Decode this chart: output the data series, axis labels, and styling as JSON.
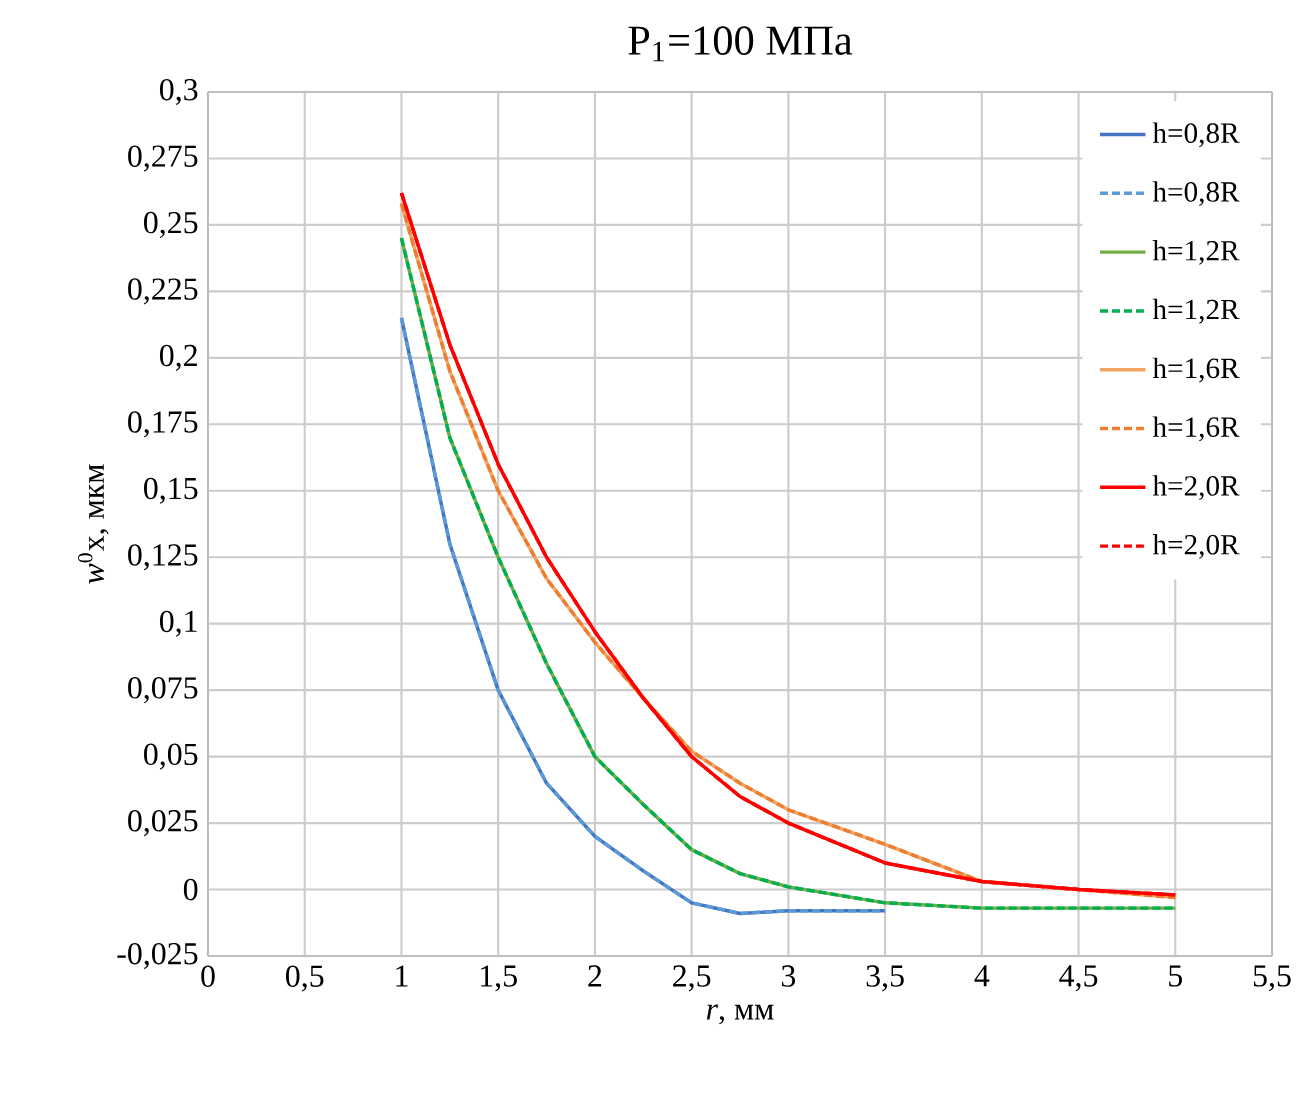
{
  "chart_data": {
    "type": "line",
    "title": "P$_{1}$=100 МПа",
    "xlabel": "*r*, мм",
    "ylabel": "*w*$^{0}$x, мкм",
    "xlim": [
      0,
      5.5
    ],
    "ylim": [
      -0.025,
      0.3
    ],
    "xticks": [
      0,
      {
        "value": 0.5,
        "label": "0,5"
      },
      1,
      {
        "value": 1.5,
        "label": "1,5"
      },
      2,
      {
        "value": 2.5,
        "label": "2,5"
      },
      3,
      {
        "value": 3.5,
        "label": "3,5"
      },
      4,
      {
        "value": 4.5,
        "label": "4,5"
      },
      5,
      {
        "value": 5.5,
        "label": "5,5"
      }
    ],
    "yticks": [
      {
        "value": -0.025,
        "label": "-0,025"
      },
      0,
      {
        "value": 0.025,
        "label": "0,025"
      },
      {
        "value": 0.05,
        "label": "0,05"
      },
      {
        "value": 0.075,
        "label": "0,075"
      },
      {
        "value": 0.1,
        "label": "0,1"
      },
      {
        "value": 0.125,
        "label": "0,125"
      },
      {
        "value": 0.15,
        "label": "0,15"
      },
      {
        "value": 0.175,
        "label": "0,175"
      },
      {
        "value": 0.2,
        "label": "0,2"
      },
      {
        "value": 0.225,
        "label": "0,225"
      },
      {
        "value": 0.25,
        "label": "0,25"
      },
      {
        "value": 0.275,
        "label": "0,275"
      },
      {
        "value": 0.3,
        "label": "0,3"
      }
    ],
    "grid": true,
    "legend": "top right",
    "x": [
      1,
      1.25,
      1.5,
      1.75,
      2,
      2.25,
      2.5,
      2.75,
      3,
      3.5,
      4,
      4.5,
      5
    ],
    "series": [
      {
        "name": "h=0,8R",
        "color": "#4472c4",
        "line_style": "solid",
        "values": [
          0.215,
          0.13,
          0.075,
          0.04,
          0.02,
          0.007,
          -0.005,
          -0.009,
          -0.008,
          -0.008,
          null,
          null,
          null
        ]
      },
      {
        "name": "h=0,8R",
        "color": "#5b9bd5",
        "line_style": "dashed",
        "values": [
          0.215,
          0.13,
          0.075,
          0.04,
          0.02,
          0.007,
          -0.005,
          -0.009,
          -0.008,
          -0.008,
          null,
          null,
          null
        ]
      },
      {
        "name": "h=1,2R",
        "color": "#70ad47",
        "line_style": "solid",
        "values": [
          0.245,
          0.17,
          0.125,
          0.085,
          0.05,
          0.032,
          0.015,
          0.006,
          0.001,
          -0.005,
          -0.007,
          -0.007,
          -0.007
        ]
      },
      {
        "name": "h=1,2R",
        "color": "#00b050",
        "line_style": "dashed",
        "values": [
          0.245,
          0.17,
          0.125,
          0.085,
          0.05,
          0.032,
          0.015,
          0.006,
          0.001,
          -0.005,
          -0.007,
          -0.007,
          -0.007
        ]
      },
      {
        "name": "h=1,6R",
        "color": "#f4a460",
        "line_style": "solid",
        "values": [
          0.258,
          0.195,
          0.15,
          0.117,
          0.093,
          0.072,
          0.052,
          0.04,
          0.03,
          0.017,
          0.003,
          0,
          -0.003
        ]
      },
      {
        "name": "h=1,6R",
        "color": "#ed7d31",
        "line_style": "dashed",
        "values": [
          0.258,
          0.195,
          0.15,
          0.117,
          0.093,
          0.072,
          0.052,
          0.04,
          0.03,
          0.017,
          0.003,
          0,
          -0.003
        ]
      },
      {
        "name": "h=2,0R",
        "color": "#ff0000",
        "line_style": "solid",
        "values": [
          0.262,
          0.205,
          0.16,
          0.125,
          0.097,
          0.072,
          0.05,
          0.035,
          0.025,
          0.01,
          0.003,
          0,
          -0.002
        ]
      },
      {
        "name": "h=2,0R",
        "color": "#ff0000",
        "line_style": "dashed",
        "values": [
          0.262,
          0.205,
          0.16,
          0.125,
          0.097,
          0.072,
          0.05,
          0.035,
          0.025,
          0.01,
          0.003,
          0,
          -0.002
        ]
      }
    ]
  }
}
